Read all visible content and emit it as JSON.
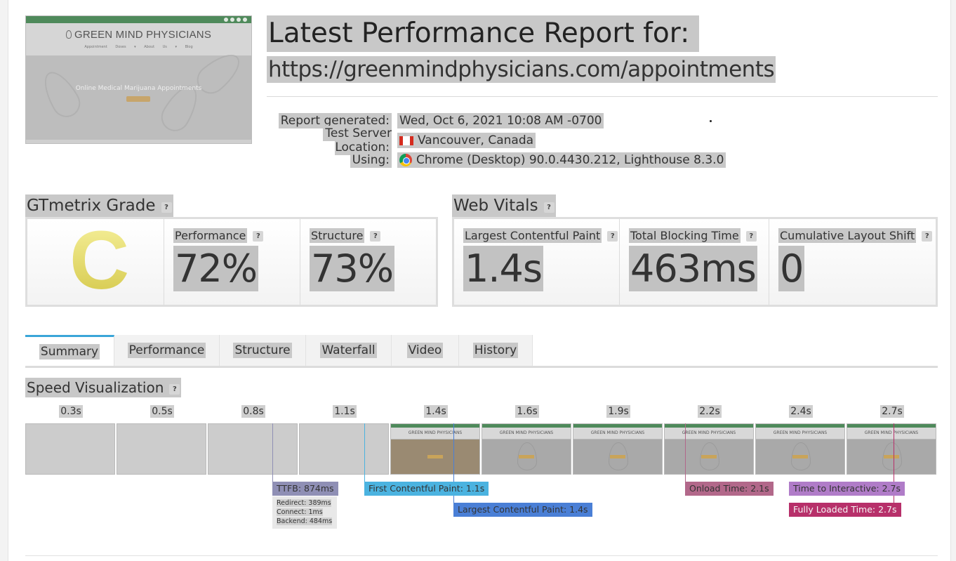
{
  "thumbnail": {
    "logo_text": "GREEN MIND PHYSICIANS",
    "nav": "Appointment  Doses ▾  About Us ▾  Blog",
    "hero_text": "Online Medical Marijuana Appointments"
  },
  "report": {
    "title": "Latest Performance Report for:",
    "url": "https://greenmindphysicians.com/appointments",
    "meta": [
      {
        "label": "Report generated:",
        "value": "Wed, Oct 6, 2021 10:08 AM -0700",
        "icon": ""
      },
      {
        "label": "Test Server Location:",
        "value": "Vancouver, Canada",
        "icon": "canada-flag-icon"
      },
      {
        "label": "Using:",
        "value": "Chrome (Desktop) 90.0.4430.212, Lighthouse 8.3.0",
        "icon": "chrome-icon"
      }
    ]
  },
  "grade_section": {
    "heading": "GTmetrix Grade",
    "help": "?",
    "grade": "C",
    "grade_color": "#e4dc6a",
    "performance": {
      "label": "Performance",
      "value": "72%"
    },
    "structure": {
      "label": "Structure",
      "value": "73%"
    }
  },
  "vitals_section": {
    "heading": "Web Vitals",
    "help": "?",
    "lcp": {
      "label": "Largest Contentful Paint",
      "value": "1.4s"
    },
    "tbt": {
      "label": "Total Blocking Time",
      "value": "463ms"
    },
    "cls": {
      "label": "Cumulative Layout Shift",
      "value": "0"
    }
  },
  "tabs": [
    {
      "label": "Summary",
      "active": true
    },
    {
      "label": "Performance",
      "active": false
    },
    {
      "label": "Structure",
      "active": false
    },
    {
      "label": "Waterfall",
      "active": false
    },
    {
      "label": "Video",
      "active": false
    },
    {
      "label": "History",
      "active": false
    }
  ],
  "speed_viz": {
    "heading": "Speed Visualization",
    "help": "?",
    "frame_times": [
      "0.3s",
      "0.5s",
      "0.8s",
      "1.1s",
      "1.4s",
      "1.6s",
      "1.9s",
      "2.2s",
      "2.4s",
      "2.7s"
    ],
    "frame_logo_text": "GREEN MIND PHYSICIANS",
    "markers": {
      "ttfb": {
        "label": "TTFB: 874ms",
        "color": "#8f8fb5"
      },
      "fcp": {
        "label": "First Contentful Paint: 1.1s",
        "color": "#4bb3e0"
      },
      "lcp": {
        "label": "Largest Contentful Paint: 1.4s",
        "color": "#4a7fd6"
      },
      "onload": {
        "label": "Onload Time: 2.1s",
        "color": "#b2688a"
      },
      "tti": {
        "label": "Time to Interactive: 2.7s",
        "color": "#b07cc8"
      },
      "fully_loaded": {
        "label": "Fully Loaded Time: 2.7s",
        "color": "#b7306a"
      }
    },
    "ttfb_breakdown": {
      "redirect": "Redirect: 389ms",
      "connect": "Connect: 1ms",
      "backend": "Backend: 484ms"
    }
  }
}
